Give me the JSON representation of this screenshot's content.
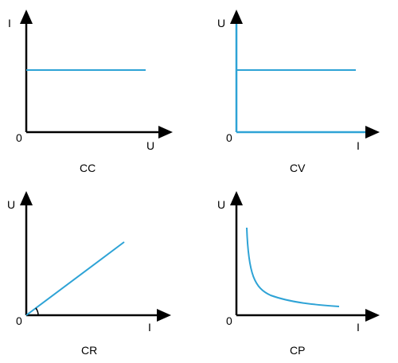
{
  "colors": {
    "axis": "#000000",
    "curve": "#2ea3d6"
  },
  "diagrams": [
    {
      "id": "cc",
      "caption": "CC",
      "y_label": "I",
      "x_label": "U",
      "origin": "0",
      "shape": "horizontal-line"
    },
    {
      "id": "cv",
      "caption": "CV",
      "y_label": "U",
      "x_label": "I",
      "origin": "0",
      "shape": "horizontal-line-with-blue-axes"
    },
    {
      "id": "cr",
      "caption": "CR",
      "y_label": "U",
      "x_label": "I",
      "origin": "0",
      "shape": "line-through-origin-with-angle-arc"
    },
    {
      "id": "cp",
      "caption": "CP",
      "y_label": "U",
      "x_label": "I",
      "origin": "0",
      "shape": "hyperbola"
    }
  ]
}
